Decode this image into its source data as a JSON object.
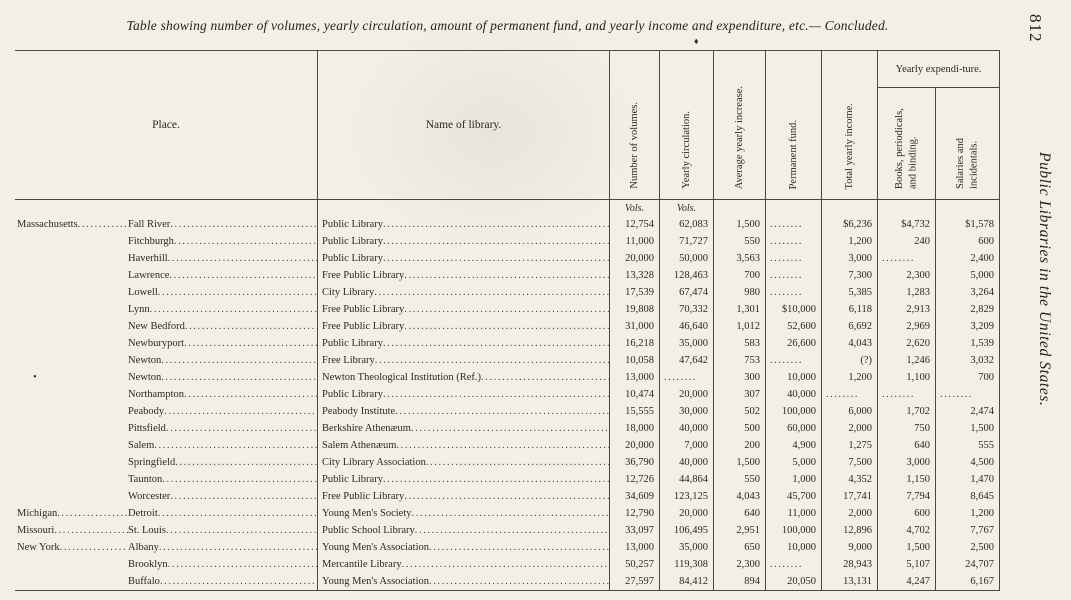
{
  "page": {
    "number": "812",
    "margin_title": "Public Libraries in the United States.",
    "table_title": "Table showing number of volumes, yearly circulation, amount of permanent fund, and yearly income and expenditure, etc.— Concluded.",
    "ornament": "♦"
  },
  "table": {
    "col_headers": {
      "place": "Place.",
      "library": "Name of library.",
      "volumes": "Number of volumes.",
      "circulation": "Yearly circulation.",
      "increase": "Average yearly increase.",
      "fund": "Permanent fund.",
      "income": "Total yearly income.",
      "expenditure_group": "Yearly expendi-ture.",
      "books": "Books, periodicals, and binding.",
      "salaries": "Salaries and incidentals."
    },
    "units": {
      "volumes": "Vols.",
      "circulation": "Vols."
    },
    "rows": [
      {
        "state": "Massachusetts",
        "marker": "",
        "city": "Fall River",
        "library": "Public Library",
        "vols": "12,754",
        "circ": "62,083",
        "incr": "1,500",
        "fund": "........",
        "income": "$6,236",
        "books": "$4,732",
        "salaries": "$1,578"
      },
      {
        "state": "",
        "marker": "",
        "city": "Fitchburgh",
        "library": "Public Library",
        "vols": "11,000",
        "circ": "71,727",
        "incr": "550",
        "fund": "........",
        "income": "1,200",
        "books": "240",
        "salaries": "600"
      },
      {
        "state": "",
        "marker": "",
        "city": "Haverhill",
        "library": "Public Library",
        "vols": "20,000",
        "circ": "50,000",
        "incr": "3,563",
        "fund": "........",
        "income": "3,000",
        "books": "........",
        "salaries": "2,400"
      },
      {
        "state": "",
        "marker": "",
        "city": "Lawrence",
        "library": "Free Public Library",
        "vols": "13,328",
        "circ": "128,463",
        "incr": "700",
        "fund": "........",
        "income": "7,300",
        "books": "2,300",
        "salaries": "5,000"
      },
      {
        "state": "",
        "marker": "",
        "city": "Lowell",
        "library": "City Library",
        "vols": "17,539",
        "circ": "67,474",
        "incr": "980",
        "fund": "........",
        "income": "5,385",
        "books": "1,283",
        "salaries": "3,264"
      },
      {
        "state": "",
        "marker": "",
        "city": "Lynn",
        "library": "Free Public Library",
        "vols": "19,808",
        "circ": "70,332",
        "incr": "1,301",
        "fund": "$10,000",
        "income": "6,118",
        "books": "2,913",
        "salaries": "2,829"
      },
      {
        "state": "",
        "marker": "",
        "city": "New Bedford",
        "library": "Free Public Library",
        "vols": "31,000",
        "circ": "46,640",
        "incr": "1,012",
        "fund": "52,600",
        "income": "6,692",
        "books": "2,969",
        "salaries": "3,209"
      },
      {
        "state": "",
        "marker": "",
        "city": "Newburyport",
        "library": "Public Library",
        "vols": "16,218",
        "circ": "35,000",
        "incr": "583",
        "fund": "26,600",
        "income": "4,043",
        "books": "2,620",
        "salaries": "1,539"
      },
      {
        "state": "",
        "marker": "",
        "city": "Newton",
        "library": "Free Library",
        "vols": "10,058",
        "circ": "47,642",
        "incr": "753",
        "fund": "........",
        "income": "(?)",
        "books": "1,246",
        "salaries": "3,032"
      },
      {
        "state": "",
        "marker": "•",
        "city": "Newton",
        "library": "Newton Theological Institution (Ref.)",
        "vols": "13,000",
        "circ": "........",
        "incr": "300",
        "fund": "10,000",
        "income": "1,200",
        "books": "1,100",
        "salaries": "700"
      },
      {
        "state": "",
        "marker": "",
        "city": "Northampton",
        "library": "Public Library",
        "vols": "10,474",
        "circ": "20,000",
        "incr": "307",
        "fund": "40,000",
        "income": "........",
        "books": "........",
        "salaries": "........"
      },
      {
        "state": "",
        "marker": "",
        "city": "Peabody",
        "library": "Peabody Institute",
        "vols": "15,555",
        "circ": "30,000",
        "incr": "502",
        "fund": "100,000",
        "income": "6,000",
        "books": "1,702",
        "salaries": "2,474"
      },
      {
        "state": "",
        "marker": "",
        "city": "Pittsfield",
        "library": "Berkshire Athenæum",
        "vols": "18,000",
        "circ": "40,000",
        "incr": "500",
        "fund": "60,000",
        "income": "2,000",
        "books": "750",
        "salaries": "1,500"
      },
      {
        "state": "",
        "marker": "",
        "city": "Salem",
        "library": "Salem Athenæum",
        "vols": "20,000",
        "circ": "7,000",
        "incr": "200",
        "fund": "4,900",
        "income": "1,275",
        "books": "640",
        "salaries": "555"
      },
      {
        "state": "",
        "marker": "",
        "city": "Springfield",
        "library": "City Library Association",
        "vols": "36,790",
        "circ": "40,000",
        "incr": "1,500",
        "fund": "5,000",
        "income": "7,500",
        "books": "3,000",
        "salaries": "4,500"
      },
      {
        "state": "",
        "marker": "",
        "city": "Taunton",
        "library": "Public Library",
        "vols": "12,726",
        "circ": "44,864",
        "incr": "550",
        "fund": "1,000",
        "income": "4,352",
        "books": "1,150",
        "salaries": "1,470"
      },
      {
        "state": "",
        "marker": "",
        "city": "Worcester",
        "library": "Free Public Library",
        "vols": "34,609",
        "circ": "123,125",
        "incr": "4,043",
        "fund": "45,700",
        "income": "17,741",
        "books": "7,794",
        "salaries": "8,645"
      },
      {
        "state": "Michigan",
        "marker": "",
        "city": "Detroit",
        "library": "Young Men's Society",
        "vols": "12,790",
        "circ": "20,000",
        "incr": "640",
        "fund": "11,000",
        "income": "2,000",
        "books": "600",
        "salaries": "1,200"
      },
      {
        "state": "Missouri",
        "marker": "",
        "city": "St. Louis",
        "library": "Public School Library",
        "vols": "33,097",
        "circ": "106,495",
        "incr": "2,951",
        "fund": "100,000",
        "income": "12,896",
        "books": "4,702",
        "salaries": "7,767"
      },
      {
        "state": "New York",
        "marker": "",
        "city": "Albany",
        "library": "Young Men's Association",
        "vols": "13,000",
        "circ": "35,000",
        "incr": "650",
        "fund": "10,000",
        "income": "9,000",
        "books": "1,500",
        "salaries": "2,500"
      },
      {
        "state": "",
        "marker": "",
        "city": "Brooklyn",
        "library": "Mercantile Library",
        "vols": "50,257",
        "circ": "119,308",
        "incr": "2,300",
        "fund": "........",
        "income": "28,943",
        "books": "5,107",
        "salaries": "24,707"
      },
      {
        "state": "",
        "marker": "",
        "city": "Buffalo",
        "library": "Young Men's Association",
        "vols": "27,597",
        "circ": "84,412",
        "incr": "894",
        "fund": "20,050",
        "income": "13,131",
        "books": "4,247",
        "salaries": "6,167"
      }
    ]
  }
}
